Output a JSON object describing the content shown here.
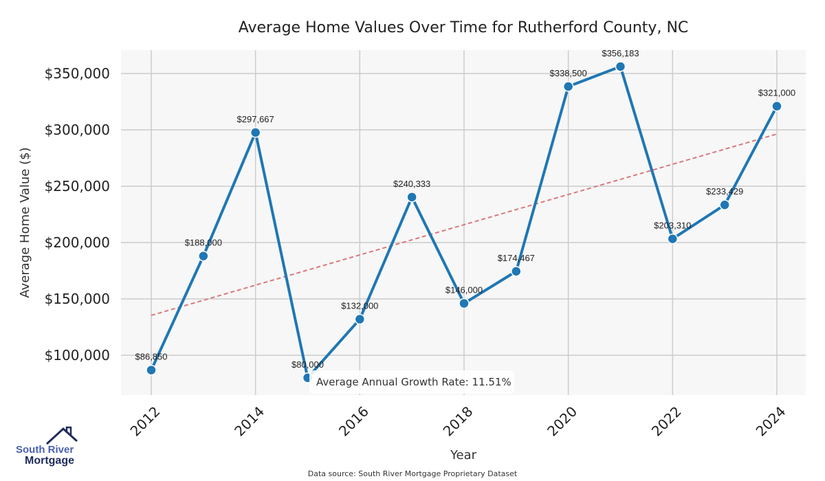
{
  "chart_data": {
    "type": "line",
    "title": "Average Home Values Over Time for Rutherford County, NC",
    "xlabel": "Year",
    "ylabel": "Average Home Value ($)",
    "x": [
      2012,
      2013,
      2014,
      2015,
      2016,
      2017,
      2018,
      2019,
      2020,
      2021,
      2022,
      2023,
      2024
    ],
    "series": [
      {
        "name": "Average Home Value",
        "values": [
          86850,
          188000,
          297667,
          80000,
          132000,
          240333,
          146000,
          174467,
          338500,
          356183,
          203310,
          233429,
          321000
        ],
        "color": "#1f77b4"
      }
    ],
    "data_labels": [
      "$86,850",
      "$188,000",
      "$297,667",
      "$80,000",
      "$132,000",
      "$240,333",
      "$146,000",
      "$174,467",
      "$338,500",
      "$356,183",
      "$203,310",
      "$233,429",
      "$321,000"
    ],
    "trendline": {
      "start": [
        2012,
        135400
      ],
      "end": [
        2024,
        296300
      ],
      "color": "#d9777a",
      "style": "dashed"
    },
    "xticks": [
      "2012",
      "2014",
      "2016",
      "2018",
      "2020",
      "2022",
      "2024"
    ],
    "yticks": [
      {
        "value": 100000,
        "label": "$100,000"
      },
      {
        "value": 150000,
        "label": "$150,000"
      },
      {
        "value": 200000,
        "label": "$200,000"
      },
      {
        "value": 250000,
        "label": "$250,000"
      },
      {
        "value": 300000,
        "label": "$300,000"
      },
      {
        "value": 350000,
        "label": "$350,000"
      }
    ],
    "xlim": [
      2011.42,
      2024.56
    ],
    "ylim": [
      69000,
      391000
    ],
    "grid": true,
    "annotation": "Average Annual Growth Rate: 11.51%"
  },
  "source": "Data source: South River Mortgage Proprietary Dataset",
  "logo": {
    "line1": "South River",
    "line2": "Mortgage"
  }
}
